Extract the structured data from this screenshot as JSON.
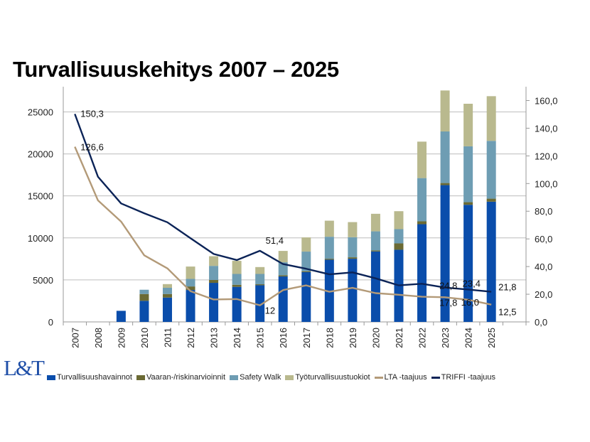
{
  "title": "Turvallisuuskehitys 2007 – 2025",
  "logo_text": "L&T",
  "chart_data": {
    "type": "bar",
    "stacked": true,
    "categories": [
      "2007",
      "2008",
      "2009",
      "2010",
      "2011",
      "2012",
      "2013",
      "2014",
      "2015",
      "2016",
      "2017",
      "2018",
      "2019",
      "2020",
      "2021",
      "2022",
      "2023",
      "2024",
      "2025"
    ],
    "left_axis": {
      "ylim": [
        0,
        28000
      ],
      "ticks": [
        "0",
        "5000",
        "10000",
        "15000",
        "20000",
        "25000"
      ],
      "tick_values": [
        0,
        5000,
        10000,
        15000,
        20000,
        25000
      ]
    },
    "right_axis": {
      "ylim": [
        0,
        170
      ],
      "ticks": [
        "0,0",
        "20,0",
        "40,0",
        "60,0",
        "80,0",
        "100,0",
        "120,0",
        "140,0",
        "160,0"
      ],
      "tick_values": [
        0,
        20,
        40,
        60,
        80,
        100,
        120,
        140,
        160
      ]
    },
    "grid": true,
    "legend_position": "bottom",
    "series": [
      {
        "name": "Turvallisuushavainnot",
        "kind": "bar",
        "axis": "left",
        "color": "#0a4dab",
        "values": [
          0,
          0,
          1320,
          2510,
          2900,
          3800,
          4650,
          4170,
          4360,
          5410,
          5920,
          7400,
          7520,
          8390,
          8590,
          11630,
          16280,
          13940,
          14310
        ]
      },
      {
        "name": "Vaaran-/riskinarvioinnit",
        "kind": "bar",
        "axis": "left",
        "color": "#6b6a34",
        "values": [
          0,
          0,
          0,
          810,
          420,
          420,
          340,
          250,
          120,
          140,
          110,
          120,
          170,
          110,
          760,
          340,
          250,
          310,
          360
        ]
      },
      {
        "name": "Safety Walk",
        "kind": "bar",
        "axis": "left",
        "color": "#6e9db3",
        "values": [
          0,
          0,
          0,
          510,
          740,
          900,
          1680,
          1290,
          1230,
          1550,
          2340,
          2620,
          2390,
          2280,
          1690,
          5150,
          6140,
          6650,
          6880
        ]
      },
      {
        "name": "Työturvallisuustuokiot",
        "kind": "bar",
        "axis": "left",
        "color": "#b9b98e",
        "values": [
          0,
          0,
          0,
          0,
          440,
          1470,
          1150,
          1560,
          820,
          1350,
          1690,
          1910,
          1800,
          2090,
          2140,
          4340,
          4880,
          5070,
          5320
        ]
      },
      {
        "name": "LTA -taajuus",
        "kind": "line",
        "axis": "right",
        "color": "#b39a78",
        "values": [
          126.6,
          87.8,
          72.5,
          48.1,
          38.7,
          22.2,
          16.2,
          16.5,
          12.0,
          23.0,
          26.4,
          21.8,
          24.6,
          20.8,
          19.6,
          18.2,
          17.8,
          16.0,
          12.5
        ]
      },
      {
        "name": "TRIFFI -taajuus",
        "kind": "line",
        "axis": "right",
        "color": "#0b2357",
        "values": [
          150.3,
          104.9,
          85.6,
          78.5,
          72.0,
          60.5,
          49.1,
          44.7,
          51.4,
          41.8,
          38.4,
          34.4,
          35.8,
          31.5,
          26.4,
          27.6,
          24.8,
          23.4,
          21.8
        ]
      }
    ],
    "data_labels": [
      {
        "series": "TRIFFI -taajuus",
        "category": "2007",
        "text": "150,3"
      },
      {
        "series": "LTA -taajuus",
        "category": "2007",
        "text": "126,6"
      },
      {
        "series": "TRIFFI -taajuus",
        "category": "2015",
        "text": "51,4"
      },
      {
        "series": "LTA -taajuus",
        "category": "2015",
        "text": "12"
      },
      {
        "series": "TRIFFI -taajuus",
        "category": "2023",
        "text": "24,8"
      },
      {
        "series": "LTA -taajuus",
        "category": "2023",
        "text": "17,8"
      },
      {
        "series": "TRIFFI -taajuus",
        "category": "2024",
        "text": "23,4"
      },
      {
        "series": "LTA -taajuus",
        "category": "2024",
        "text": "16,0"
      },
      {
        "series": "TRIFFI -taajuus",
        "category": "2025",
        "text": "21,8"
      },
      {
        "series": "LTA -taajuus",
        "category": "2025",
        "text": "12,5"
      }
    ]
  }
}
